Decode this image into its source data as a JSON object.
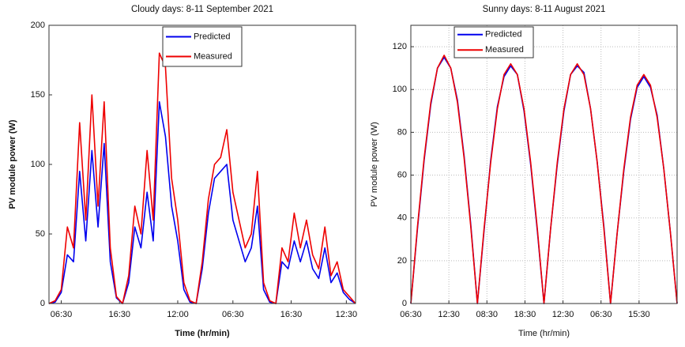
{
  "chart_data": [
    {
      "type": "line",
      "title": "Cloudy days: 8-11 September 2021",
      "xlabel": "Time (hr/min)",
      "ylabel": "PV module power (W)",
      "x": [
        0,
        2,
        4,
        6,
        8,
        10,
        12,
        14,
        16,
        18,
        20,
        22,
        24,
        26,
        28,
        30,
        32,
        34,
        36,
        38,
        40,
        42,
        44,
        46,
        48,
        50,
        52,
        54,
        56,
        58,
        60,
        62,
        64,
        66,
        68,
        70,
        72,
        74,
        76,
        78,
        80,
        82,
        84,
        86,
        88,
        90,
        92,
        94,
        96,
        98,
        100
      ],
      "xlim": [
        0,
        100
      ],
      "xticks": [
        {
          "value": 4,
          "label": "06:30"
        },
        {
          "value": 23,
          "label": "16:30"
        },
        {
          "value": 42,
          "label": "12:00"
        },
        {
          "value": 60,
          "label": "06:30"
        },
        {
          "value": 79,
          "label": "16:30"
        },
        {
          "value": 97,
          "label": "12:30"
        }
      ],
      "ylim": [
        0,
        200
      ],
      "yticks": [
        0,
        50,
        100,
        150,
        200
      ],
      "grid": false,
      "legend": "upper center",
      "series": [
        {
          "name": "Predicted",
          "color": "#0000ee",
          "values": [
            0,
            1,
            8,
            35,
            30,
            95,
            45,
            110,
            55,
            115,
            30,
            4,
            0,
            15,
            55,
            40,
            80,
            45,
            145,
            120,
            70,
            45,
            10,
            1,
            0,
            25,
            65,
            90,
            95,
            100,
            60,
            45,
            30,
            40,
            70,
            10,
            1,
            0,
            30,
            25,
            45,
            30,
            45,
            25,
            18,
            40,
            15,
            22,
            8,
            3,
            0
          ]
        },
        {
          "name": "Measured",
          "color": "#ee0000",
          "values": [
            0,
            2,
            10,
            55,
            40,
            130,
            60,
            150,
            70,
            145,
            40,
            5,
            0,
            20,
            70,
            50,
            110,
            60,
            180,
            170,
            90,
            60,
            15,
            2,
            0,
            30,
            75,
            100,
            105,
            125,
            80,
            60,
            40,
            50,
            95,
            15,
            2,
            0,
            40,
            30,
            65,
            40,
            60,
            35,
            25,
            55,
            20,
            30,
            10,
            5,
            0
          ]
        }
      ]
    },
    {
      "type": "line",
      "title": "Sunny days: 8-11 August 2021",
      "xlabel": "Time (hr/min)",
      "ylabel": "PV module power (W)",
      "x": [
        0,
        0.175,
        0.35,
        0.525,
        0.7,
        0.875,
        1.05,
        1.225,
        1.4,
        1.575,
        1.75,
        1.925,
        2.1,
        2.275,
        2.45,
        2.625,
        2.8,
        2.975,
        3.15,
        3.325,
        3.5,
        3.675,
        3.85,
        4.025,
        4.2,
        4.375,
        4.55,
        4.725,
        4.9,
        5.075,
        5.25,
        5.425,
        5.6,
        5.775,
        5.95,
        6.125,
        6.3,
        6.475,
        6.65,
        6.825,
        7
      ],
      "xlim": [
        0,
        7
      ],
      "xticks": [
        {
          "value": 0,
          "label": "06:30"
        },
        {
          "value": 1,
          "label": "12:30"
        },
        {
          "value": 2,
          "label": "08:30"
        },
        {
          "value": 3,
          "label": "18:30"
        },
        {
          "value": 4,
          "label": "12:30"
        },
        {
          "value": 5,
          "label": "06:30"
        },
        {
          "value": 6,
          "label": "15:30"
        }
      ],
      "ylim": [
        0,
        130
      ],
      "yticks": [
        0,
        20,
        40,
        60,
        80,
        100,
        120
      ],
      "grid": true,
      "legend": "upper left",
      "series": [
        {
          "name": "Predicted",
          "color": "#0000ee",
          "values": [
            0,
            35,
            67,
            93,
            110,
            115,
            110,
            95,
            69,
            37,
            0,
            34,
            67,
            92,
            106,
            111,
            107,
            90,
            65,
            34,
            0,
            35,
            65,
            90,
            107,
            111,
            108,
            91,
            66,
            36,
            0,
            33,
            62,
            86,
            101,
            106,
            101,
            88,
            63,
            33,
            0
          ]
        },
        {
          "name": "Measured",
          "color": "#ee0000",
          "values": [
            0,
            36,
            68,
            94,
            110,
            116,
            110,
            94,
            68,
            36,
            0,
            35,
            66,
            91,
            107,
            112,
            107,
            91,
            66,
            35,
            0,
            35,
            66,
            91,
            107,
            112,
            107,
            91,
            66,
            35,
            0,
            33,
            63,
            87,
            102,
            107,
            102,
            87,
            63,
            33,
            0
          ]
        }
      ]
    }
  ]
}
